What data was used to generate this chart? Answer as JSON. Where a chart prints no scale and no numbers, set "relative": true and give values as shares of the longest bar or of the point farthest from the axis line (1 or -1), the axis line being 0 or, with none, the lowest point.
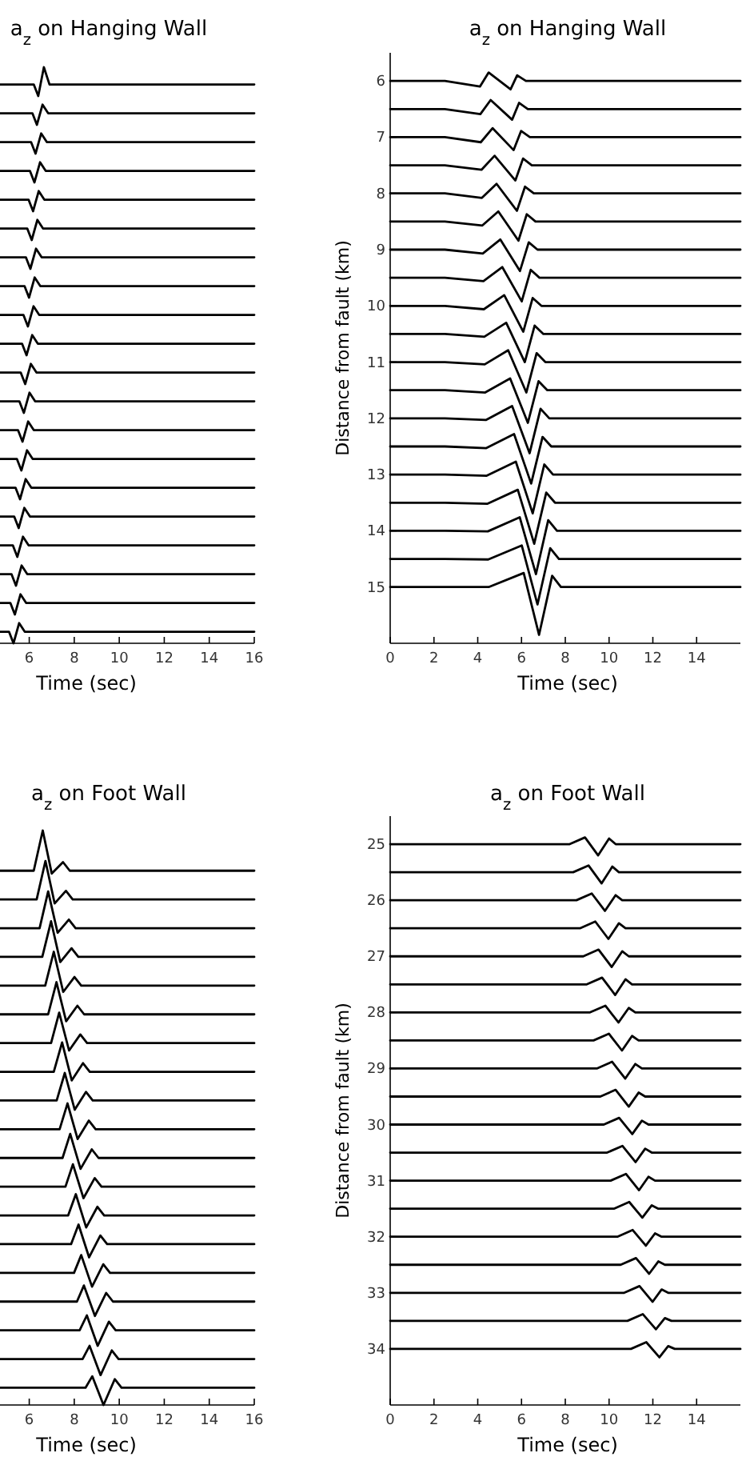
{
  "chart_data": [
    {
      "type": "line",
      "title": "a$_{z}$ on Hanging Wall",
      "xlabel": "Time (sec)",
      "relative": true,
      "xlim": [
        4.7,
        16
      ],
      "xticks": [
        6,
        8,
        10,
        12,
        14,
        16
      ],
      "series": [
        {
          "color": "#000000",
          "x": [
            4.7,
            6.2,
            6.4,
            6.65,
            6.9,
            16
          ],
          "values": [
            0.97,
            0.97,
            0.95,
            1.0,
            0.97,
            0.97
          ]
        },
        {
          "color": "#000000",
          "x": [
            4.7,
            6.14,
            6.34,
            6.59,
            6.84,
            16
          ],
          "values": [
            0.92,
            0.92,
            0.9,
            0.935,
            0.92,
            0.92
          ]
        },
        {
          "color": "#000000",
          "x": [
            4.7,
            6.08,
            6.28,
            6.53,
            6.78,
            16
          ],
          "values": [
            0.87,
            0.87,
            0.85,
            0.885,
            0.87,
            0.87
          ]
        },
        {
          "color": "#000000",
          "x": [
            4.7,
            6.03,
            6.23,
            6.48,
            6.73,
            16
          ],
          "values": [
            0.82,
            0.82,
            0.8,
            0.835,
            0.82,
            0.82
          ]
        },
        {
          "color": "#000000",
          "x": [
            4.7,
            5.97,
            6.17,
            6.42,
            6.67,
            16
          ],
          "values": [
            0.77,
            0.77,
            0.75,
            0.785,
            0.77,
            0.77
          ]
        },
        {
          "color": "#000000",
          "x": [
            4.7,
            5.91,
            6.11,
            6.36,
            6.61,
            16
          ],
          "values": [
            0.72,
            0.72,
            0.7,
            0.735,
            0.72,
            0.72
          ]
        },
        {
          "color": "#000000",
          "x": [
            4.7,
            5.85,
            6.05,
            6.3,
            6.55,
            16
          ],
          "values": [
            0.67,
            0.67,
            0.65,
            0.685,
            0.67,
            0.67
          ]
        },
        {
          "color": "#000000",
          "x": [
            4.7,
            5.79,
            5.99,
            6.24,
            6.49,
            16
          ],
          "values": [
            0.62,
            0.62,
            0.6,
            0.635,
            0.62,
            0.62
          ]
        },
        {
          "color": "#000000",
          "x": [
            4.7,
            5.74,
            5.94,
            6.19,
            6.44,
            16
          ],
          "values": [
            0.57,
            0.57,
            0.55,
            0.585,
            0.57,
            0.57
          ]
        },
        {
          "color": "#000000",
          "x": [
            4.7,
            5.68,
            5.88,
            6.13,
            6.38,
            16
          ],
          "values": [
            0.52,
            0.52,
            0.5,
            0.535,
            0.52,
            0.52
          ]
        },
        {
          "color": "#000000",
          "x": [
            4.7,
            5.62,
            5.82,
            6.07,
            6.32,
            16
          ],
          "values": [
            0.47,
            0.47,
            0.45,
            0.485,
            0.47,
            0.47
          ]
        },
        {
          "color": "#000000",
          "x": [
            4.7,
            5.56,
            5.76,
            6.01,
            6.26,
            16
          ],
          "values": [
            0.42,
            0.42,
            0.4,
            0.435,
            0.42,
            0.42
          ]
        },
        {
          "color": "#000000",
          "x": [
            4.7,
            5.5,
            5.7,
            5.95,
            6.2,
            16
          ],
          "values": [
            0.37,
            0.37,
            0.35,
            0.385,
            0.37,
            0.37
          ]
        },
        {
          "color": "#000000",
          "x": [
            4.7,
            5.45,
            5.65,
            5.9,
            6.15,
            16
          ],
          "values": [
            0.32,
            0.32,
            0.3,
            0.335,
            0.32,
            0.32
          ]
        },
        {
          "color": "#000000",
          "x": [
            4.7,
            5.39,
            5.59,
            5.84,
            6.09,
            16
          ],
          "values": [
            0.27,
            0.27,
            0.25,
            0.285,
            0.27,
            0.27
          ]
        },
        {
          "color": "#000000",
          "x": [
            4.7,
            5.33,
            5.53,
            5.78,
            6.03,
            16
          ],
          "values": [
            0.22,
            0.22,
            0.2,
            0.235,
            0.22,
            0.22
          ]
        },
        {
          "color": "#000000",
          "x": [
            4.7,
            5.27,
            5.47,
            5.72,
            5.97,
            16
          ],
          "values": [
            0.17,
            0.17,
            0.15,
            0.185,
            0.17,
            0.17
          ]
        },
        {
          "color": "#000000",
          "x": [
            4.7,
            5.21,
            5.41,
            5.66,
            5.91,
            16
          ],
          "values": [
            0.12,
            0.12,
            0.1,
            0.135,
            0.12,
            0.12
          ]
        },
        {
          "color": "#000000",
          "x": [
            4.7,
            5.16,
            5.36,
            5.61,
            5.86,
            16
          ],
          "values": [
            0.07,
            0.07,
            0.05,
            0.085,
            0.07,
            0.07
          ]
        },
        {
          "color": "#000000",
          "x": [
            4.7,
            5.1,
            5.3,
            5.55,
            5.8,
            16
          ],
          "values": [
            0.02,
            0.02,
            0.0,
            0.035,
            0.02,
            0.02
          ]
        }
      ]
    },
    {
      "type": "line",
      "title": "a$_{z}$ on Hanging Wall",
      "xlabel": "Time (sec)",
      "ylabel": "Distance from fault (km)",
      "xlim": [
        0,
        16
      ],
      "xticks": [
        0,
        2,
        4,
        6,
        8,
        10,
        12,
        14
      ],
      "ylim": [
        16,
        5.5
      ],
      "yticks": [
        6,
        7,
        8,
        9,
        10,
        11,
        12,
        13,
        14,
        15
      ],
      "series": [
        {
          "color": "#000000",
          "x": [
            0,
            2.5,
            4.1,
            4.5,
            5.5,
            5.8,
            6.2,
            16
          ],
          "values": [
            6,
            6,
            6.1,
            5.85,
            6.15,
            5.9,
            6,
            6
          ]
        },
        {
          "color": "#000000",
          "x": [
            0,
            2.5,
            4.12,
            4.59,
            5.57,
            5.89,
            6.29,
            16
          ],
          "values": [
            6.5,
            6.5,
            6.59,
            6.34,
            6.69,
            6.39,
            6.5,
            6.5
          ]
        },
        {
          "color": "#000000",
          "x": [
            0,
            2.5,
            4.14,
            4.68,
            5.64,
            5.98,
            6.38,
            16
          ],
          "values": [
            7,
            7,
            7.09,
            6.84,
            7.23,
            6.89,
            7,
            7
          ]
        },
        {
          "color": "#000000",
          "x": [
            0,
            2.5,
            4.17,
            4.77,
            5.72,
            6.07,
            6.47,
            16
          ],
          "values": [
            7.5,
            7.5,
            7.58,
            7.33,
            7.77,
            7.38,
            7.5,
            7.5
          ]
        },
        {
          "color": "#000000",
          "x": [
            0,
            2.5,
            4.19,
            4.86,
            5.79,
            6.16,
            6.56,
            16
          ],
          "values": [
            8,
            8,
            8.08,
            7.83,
            8.31,
            7.88,
            8,
            8
          ]
        },
        {
          "color": "#000000",
          "x": [
            0,
            2.5,
            4.21,
            4.94,
            5.86,
            6.24,
            6.64,
            16
          ],
          "values": [
            8.5,
            8.5,
            8.57,
            8.32,
            8.84,
            8.37,
            8.5,
            8.5
          ]
        },
        {
          "color": "#000000",
          "x": [
            0,
            2.5,
            4.23,
            5.03,
            5.93,
            6.33,
            6.73,
            16
          ],
          "values": [
            9,
            9,
            9.07,
            8.82,
            9.38,
            8.87,
            9,
            9
          ]
        },
        {
          "color": "#000000",
          "x": [
            0,
            2.5,
            4.26,
            5.12,
            6.01,
            6.42,
            6.82,
            16
          ],
          "values": [
            9.5,
            9.5,
            9.56,
            9.31,
            9.92,
            9.36,
            9.5,
            9.5
          ]
        },
        {
          "color": "#000000",
          "x": [
            0,
            2.5,
            4.28,
            5.21,
            6.08,
            6.51,
            6.91,
            16
          ],
          "values": [
            10,
            10,
            10.06,
            9.81,
            10.46,
            9.86,
            10,
            10
          ]
        },
        {
          "color": "#000000",
          "x": [
            0,
            2.5,
            4.3,
            5.3,
            6.15,
            6.6,
            7,
            16
          ],
          "values": [
            10.5,
            10.5,
            10.55,
            10.3,
            11.0,
            10.35,
            10.5,
            10.5
          ]
        },
        {
          "color": "#000000",
          "x": [
            0,
            2.5,
            4.32,
            5.39,
            6.22,
            6.69,
            7.09,
            16
          ],
          "values": [
            11,
            11,
            11.04,
            10.79,
            11.54,
            10.84,
            11,
            11
          ]
        },
        {
          "color": "#000000",
          "x": [
            0,
            2.5,
            4.34,
            5.48,
            6.29,
            6.78,
            7.18,
            16
          ],
          "values": [
            11.5,
            11.5,
            11.54,
            11.29,
            12.08,
            11.34,
            11.5,
            11.5
          ]
        },
        {
          "color": "#000000",
          "x": [
            0,
            2.5,
            4.37,
            5.57,
            6.37,
            6.87,
            7.27,
            16
          ],
          "values": [
            12,
            12,
            12.03,
            11.78,
            12.62,
            11.83,
            12,
            12
          ]
        },
        {
          "color": "#000000",
          "x": [
            0,
            2.5,
            4.39,
            5.66,
            6.44,
            6.96,
            7.36,
            16
          ],
          "values": [
            12.5,
            12.5,
            12.53,
            12.28,
            13.16,
            12.33,
            12.5,
            12.5
          ]
        },
        {
          "color": "#000000",
          "x": [
            0,
            2.5,
            4.41,
            5.74,
            6.51,
            7.04,
            7.44,
            16
          ],
          "values": [
            13,
            13,
            13.02,
            12.77,
            13.69,
            12.82,
            13,
            13
          ]
        },
        {
          "color": "#000000",
          "x": [
            0,
            2.5,
            4.43,
            5.83,
            6.58,
            7.13,
            7.53,
            16
          ],
          "values": [
            13.5,
            13.5,
            13.52,
            13.27,
            14.23,
            13.32,
            13.5,
            13.5
          ]
        },
        {
          "color": "#000000",
          "x": [
            0,
            2.5,
            4.46,
            5.92,
            6.66,
            7.22,
            7.62,
            16
          ],
          "values": [
            14,
            14,
            14.01,
            13.76,
            14.77,
            13.81,
            14,
            14
          ]
        },
        {
          "color": "#000000",
          "x": [
            0,
            2.5,
            4.48,
            6.01,
            6.73,
            7.31,
            7.71,
            16
          ],
          "values": [
            14.5,
            14.5,
            14.51,
            14.26,
            15.31,
            14.31,
            14.5,
            14.5
          ]
        },
        {
          "color": "#000000",
          "x": [
            0,
            2.5,
            4.5,
            6.1,
            6.8,
            7.4,
            7.8,
            16
          ],
          "values": [
            15,
            15,
            15,
            14.75,
            15.85,
            14.8,
            15,
            15
          ]
        }
      ]
    },
    {
      "type": "line",
      "title": "a$_{z}$ on Foot Wall",
      "xlabel": "Time (sec)",
      "relative": true,
      "xlim": [
        4.7,
        16
      ],
      "xticks": [
        6,
        8,
        10,
        12,
        14,
        16
      ],
      "series": [
        {
          "color": "#000000",
          "x": [
            4.7,
            6.2,
            6.6,
            7.0,
            7.5,
            7.8,
            16
          ],
          "values": [
            0.93,
            0.93,
            1.0,
            0.925,
            0.945,
            0.93,
            0.93
          ]
        },
        {
          "color": "#000000",
          "x": [
            4.7,
            6.33,
            6.72,
            7.13,
            7.63,
            7.93,
            16
          ],
          "values": [
            0.88,
            0.88,
            0.947,
            0.873,
            0.895,
            0.88,
            0.88
          ]
        },
        {
          "color": "#000000",
          "x": [
            4.7,
            6.46,
            6.84,
            7.26,
            7.76,
            8.06,
            16
          ],
          "values": [
            0.83,
            0.83,
            0.894,
            0.822,
            0.845,
            0.83,
            0.83
          ]
        },
        {
          "color": "#000000",
          "x": [
            4.7,
            6.58,
            6.97,
            7.38,
            7.88,
            8.18,
            16
          ],
          "values": [
            0.78,
            0.78,
            0.842,
            0.771,
            0.795,
            0.78,
            0.78
          ]
        },
        {
          "color": "#000000",
          "x": [
            4.7,
            6.71,
            7.09,
            7.51,
            8.01,
            8.31,
            16
          ],
          "values": [
            0.73,
            0.73,
            0.789,
            0.719,
            0.745,
            0.73,
            0.73
          ]
        },
        {
          "color": "#000000",
          "x": [
            4.7,
            6.84,
            7.21,
            7.64,
            8.14,
            8.44,
            16
          ],
          "values": [
            0.68,
            0.68,
            0.736,
            0.668,
            0.695,
            0.68,
            0.68
          ]
        },
        {
          "color": "#000000",
          "x": [
            4.7,
            6.97,
            7.33,
            7.77,
            8.27,
            8.57,
            16
          ],
          "values": [
            0.63,
            0.63,
            0.683,
            0.617,
            0.645,
            0.63,
            0.63
          ]
        },
        {
          "color": "#000000",
          "x": [
            4.7,
            7.09,
            7.46,
            7.89,
            8.39,
            8.69,
            16
          ],
          "values": [
            0.58,
            0.58,
            0.631,
            0.565,
            0.595,
            0.58,
            0.58
          ]
        },
        {
          "color": "#000000",
          "x": [
            4.7,
            7.22,
            7.58,
            8.02,
            8.52,
            8.82,
            16
          ],
          "values": [
            0.53,
            0.53,
            0.578,
            0.514,
            0.545,
            0.53,
            0.53
          ]
        },
        {
          "color": "#000000",
          "x": [
            4.7,
            7.35,
            7.7,
            8.15,
            8.65,
            8.95,
            16
          ],
          "values": [
            0.48,
            0.48,
            0.525,
            0.463,
            0.495,
            0.48,
            0.48
          ]
        },
        {
          "color": "#000000",
          "x": [
            4.7,
            7.48,
            7.82,
            8.28,
            8.78,
            9.08,
            16
          ],
          "values": [
            0.43,
            0.43,
            0.472,
            0.411,
            0.445,
            0.43,
            0.43
          ]
        },
        {
          "color": "#000000",
          "x": [
            4.7,
            7.61,
            7.94,
            8.41,
            8.91,
            9.21,
            16
          ],
          "values": [
            0.38,
            0.38,
            0.419,
            0.36,
            0.395,
            0.38,
            0.38
          ]
        },
        {
          "color": "#000000",
          "x": [
            4.7,
            7.73,
            8.07,
            8.53,
            9.03,
            9.33,
            16
          ],
          "values": [
            0.33,
            0.33,
            0.367,
            0.309,
            0.345,
            0.33,
            0.33
          ]
        },
        {
          "color": "#000000",
          "x": [
            4.7,
            7.86,
            8.19,
            8.66,
            9.16,
            9.46,
            16
          ],
          "values": [
            0.28,
            0.28,
            0.314,
            0.257,
            0.295,
            0.28,
            0.28
          ]
        },
        {
          "color": "#000000",
          "x": [
            4.7,
            7.99,
            8.31,
            8.79,
            9.29,
            9.59,
            16
          ],
          "values": [
            0.23,
            0.23,
            0.261,
            0.206,
            0.245,
            0.23,
            0.23
          ]
        },
        {
          "color": "#000000",
          "x": [
            4.7,
            8.12,
            8.43,
            8.92,
            9.42,
            9.72,
            16
          ],
          "values": [
            0.18,
            0.18,
            0.208,
            0.155,
            0.195,
            0.18,
            0.18
          ]
        },
        {
          "color": "#000000",
          "x": [
            4.7,
            8.24,
            8.56,
            9.04,
            9.54,
            9.84,
            16
          ],
          "values": [
            0.13,
            0.13,
            0.156,
            0.103,
            0.145,
            0.13,
            0.13
          ]
        },
        {
          "color": "#000000",
          "x": [
            4.7,
            8.37,
            8.68,
            9.17,
            9.67,
            9.97,
            16
          ],
          "values": [
            0.08,
            0.08,
            0.103,
            0.052,
            0.095,
            0.08,
            0.08
          ]
        },
        {
          "color": "#000000",
          "x": [
            4.7,
            8.5,
            8.8,
            9.3,
            9.8,
            10.1,
            16
          ],
          "values": [
            0.03,
            0.03,
            0.05,
            0.0,
            0.045,
            0.03,
            0.03
          ]
        }
      ]
    },
    {
      "type": "line",
      "title": "a$_{z}$ on Foot Wall",
      "xlabel": "Time (sec)",
      "ylabel": "Distance from fault (km)",
      "xlim": [
        0,
        16
      ],
      "xticks": [
        0,
        2,
        4,
        6,
        8,
        10,
        12,
        14
      ],
      "ylim": [
        35,
        24.5
      ],
      "yticks": [
        25,
        26,
        27,
        28,
        29,
        30,
        31,
        32,
        33,
        34
      ],
      "series": [
        {
          "color": "#000000",
          "x": [
            0,
            8.2,
            8.9,
            9.5,
            10.0,
            10.3,
            16
          ],
          "values": [
            25,
            25,
            24.88,
            25.2,
            24.9,
            25,
            25
          ]
        },
        {
          "color": "#000000",
          "x": [
            0,
            8.36,
            9.06,
            9.66,
            10.15,
            10.45,
            16
          ],
          "values": [
            25.5,
            25.5,
            25.38,
            25.7,
            25.4,
            25.5,
            25.5
          ]
        },
        {
          "color": "#000000",
          "x": [
            0,
            8.51,
            9.21,
            9.81,
            10.3,
            10.6,
            16
          ],
          "values": [
            26,
            26,
            25.88,
            26.19,
            25.91,
            26,
            26
          ]
        },
        {
          "color": "#000000",
          "x": [
            0,
            8.67,
            9.37,
            9.97,
            10.45,
            10.75,
            16
          ],
          "values": [
            26.5,
            26.5,
            26.38,
            26.69,
            26.41,
            26.5,
            26.5
          ]
        },
        {
          "color": "#000000",
          "x": [
            0,
            8.82,
            9.52,
            10.12,
            10.6,
            10.9,
            16
          ],
          "values": [
            27,
            27,
            26.88,
            27.19,
            26.91,
            27,
            27
          ]
        },
        {
          "color": "#000000",
          "x": [
            0,
            8.98,
            9.68,
            10.28,
            10.75,
            11.05,
            16
          ],
          "values": [
            27.5,
            27.5,
            27.38,
            27.69,
            27.41,
            27.5,
            27.5
          ]
        },
        {
          "color": "#000000",
          "x": [
            0,
            9.13,
            9.83,
            10.43,
            10.9,
            11.2,
            16
          ],
          "values": [
            28,
            28,
            27.88,
            28.18,
            27.92,
            28,
            28
          ]
        },
        {
          "color": "#000000",
          "x": [
            0,
            9.29,
            9.99,
            10.59,
            11.05,
            11.35,
            16
          ],
          "values": [
            28.5,
            28.5,
            28.38,
            28.68,
            28.42,
            28.5,
            28.5
          ]
        },
        {
          "color": "#000000",
          "x": [
            0,
            9.44,
            10.14,
            10.74,
            11.2,
            11.5,
            16
          ],
          "values": [
            29,
            29,
            28.88,
            29.18,
            28.92,
            29,
            29
          ]
        },
        {
          "color": "#000000",
          "x": [
            0,
            9.6,
            10.3,
            10.9,
            11.35,
            11.65,
            16
          ],
          "values": [
            29.5,
            29.5,
            29.38,
            29.68,
            29.43,
            29.5,
            29.5
          ]
        },
        {
          "color": "#000000",
          "x": [
            0,
            9.76,
            10.46,
            11.06,
            11.5,
            11.8,
            16
          ],
          "values": [
            30,
            30,
            29.88,
            30.17,
            29.93,
            30,
            30
          ]
        },
        {
          "color": "#000000",
          "x": [
            0,
            9.91,
            10.61,
            11.21,
            11.65,
            11.95,
            16
          ],
          "values": [
            30.5,
            30.5,
            30.38,
            30.67,
            30.43,
            30.5,
            30.5
          ]
        },
        {
          "color": "#000000",
          "x": [
            0,
            10.07,
            10.77,
            11.37,
            11.8,
            12.1,
            16
          ],
          "values": [
            31,
            31,
            30.88,
            31.17,
            30.93,
            31,
            31
          ]
        },
        {
          "color": "#000000",
          "x": [
            0,
            10.22,
            10.92,
            11.52,
            11.95,
            12.25,
            16
          ],
          "values": [
            31.5,
            31.5,
            31.38,
            31.66,
            31.44,
            31.5,
            31.5
          ]
        },
        {
          "color": "#000000",
          "x": [
            0,
            10.38,
            11.08,
            11.68,
            12.1,
            12.4,
            16
          ],
          "values": [
            32,
            32,
            31.88,
            32.16,
            31.94,
            32,
            32
          ]
        },
        {
          "color": "#000000",
          "x": [
            0,
            10.53,
            11.23,
            11.83,
            12.25,
            12.55,
            16
          ],
          "values": [
            32.5,
            32.5,
            32.38,
            32.66,
            32.44,
            32.5,
            32.5
          ]
        },
        {
          "color": "#000000",
          "x": [
            0,
            10.69,
            11.39,
            11.99,
            12.4,
            12.7,
            16
          ],
          "values": [
            33,
            33,
            32.88,
            33.16,
            32.94,
            33,
            33
          ]
        },
        {
          "color": "#000000",
          "x": [
            0,
            10.84,
            11.54,
            12.14,
            12.55,
            12.85,
            16
          ],
          "values": [
            33.5,
            33.5,
            33.38,
            33.65,
            33.45,
            33.5,
            33.5
          ]
        },
        {
          "color": "#000000",
          "x": [
            0,
            11.0,
            11.7,
            12.3,
            12.7,
            13.0,
            16
          ],
          "values": [
            34,
            34,
            33.88,
            34.15,
            33.95,
            34,
            34
          ]
        }
      ]
    }
  ]
}
